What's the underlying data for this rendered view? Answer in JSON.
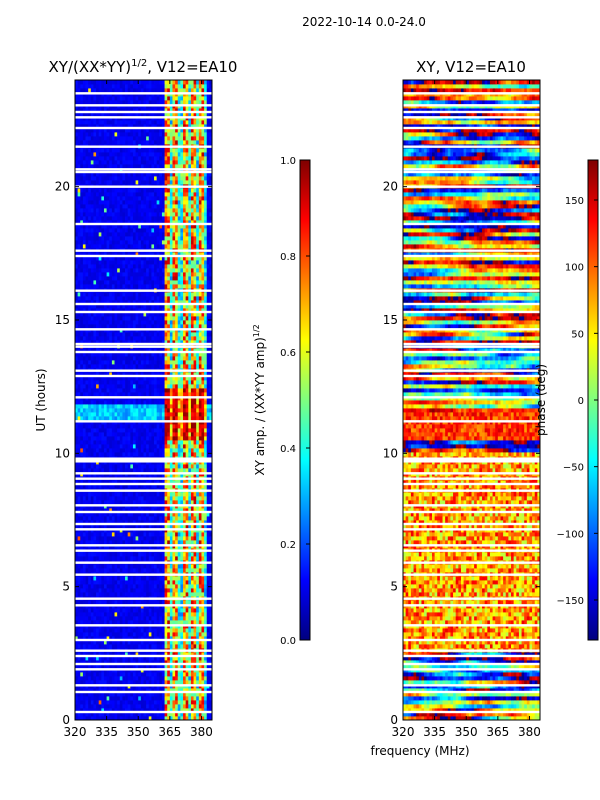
{
  "figure": {
    "suptitle": "2022-10-14 0.0-24.0",
    "xlabel_shared": "frequency (MHz)"
  },
  "colors": {
    "jet": [
      "#00007f",
      "#0000ff",
      "#007fff",
      "#00ffff",
      "#7fff7f",
      "#ffff00",
      "#ff7f00",
      "#ff0000",
      "#7f0000"
    ],
    "background": "#ffffff",
    "gap": "#ffffff"
  },
  "chart_data": [
    {
      "type": "heatmap",
      "title": "XY/(XX*YY)^1/2, V12=EA10",
      "title_main": "XY/(XX*YY)",
      "title_sup": "1/2",
      "title_tail": ", V12=EA10",
      "xlabel": "",
      "ylabel": "UT (hours)",
      "xlim": [
        320,
        385
      ],
      "ylim": [
        0,
        24
      ],
      "xticks": [
        320,
        335,
        350,
        365,
        380
      ],
      "xtick_labels": [
        "320",
        "335",
        "350",
        "365",
        "380"
      ],
      "yticks": [
        0,
        5,
        10,
        15,
        20
      ],
      "ytick_labels": [
        "0",
        "5",
        "10",
        "15",
        "20"
      ],
      "colorbar": {
        "label_main": "XY amp. / (XX*YY amp)",
        "label_sup": "1/2",
        "range": [
          0.0,
          1.0
        ],
        "ticks": [
          0.0,
          0.2,
          0.4,
          0.6,
          0.8,
          1.0
        ],
        "tick_labels": [
          "0.0",
          "0.2",
          "0.4",
          "0.6",
          "0.8",
          "1.0"
        ]
      },
      "bright_channels_mhz": [
        364,
        368,
        372,
        376,
        380
      ],
      "enhanced_band_hours": [
        10.5,
        12.5
      ]
    },
    {
      "type": "heatmap",
      "title": "XY, V12=EA10",
      "xlabel": "frequency (MHz)",
      "ylabel": "",
      "xlim": [
        320,
        385
      ],
      "ylim": [
        0,
        24
      ],
      "xticks": [
        320,
        335,
        350,
        365,
        380
      ],
      "xtick_labels": [
        "320",
        "335",
        "350",
        "365",
        "380"
      ],
      "yticks": [
        0,
        5,
        10,
        15,
        20
      ],
      "ytick_labels": [
        "0",
        "5",
        "10",
        "15",
        "20"
      ],
      "colorbar": {
        "label": "phase (deg)",
        "range": [
          -180,
          180
        ],
        "ticks": [
          -150,
          -100,
          -50,
          0,
          50,
          100,
          150
        ],
        "tick_labels": [
          "−150",
          "−100",
          "−50",
          "0",
          "50",
          "100",
          "150"
        ]
      }
    }
  ],
  "gap_hours": [
    0.3,
    1.05,
    1.3,
    1.9,
    2.1,
    2.4,
    2.6,
    3.0,
    3.55,
    4.3,
    4.55,
    5.45,
    5.9,
    6.35,
    6.55,
    7.15,
    7.35,
    7.8,
    8.05,
    8.6,
    8.85,
    9.05,
    9.25,
    9.7,
    9.75,
    9.8,
    11.2,
    12.1,
    12.9,
    13.1,
    13.8,
    14.0,
    14.1,
    14.65,
    15.3,
    15.6,
    16.1,
    17.4,
    17.6,
    18.6,
    20.0,
    20.55,
    20.65,
    21.5,
    22.2,
    22.6,
    22.8,
    23.05,
    23.5
  ]
}
